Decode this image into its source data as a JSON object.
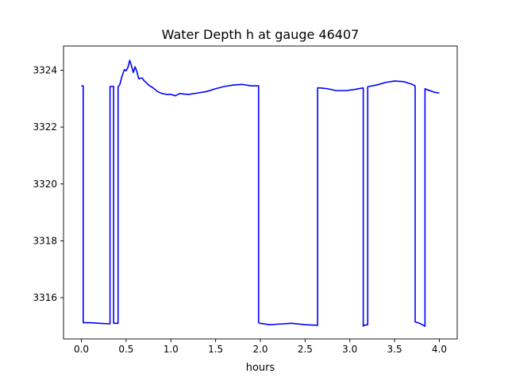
{
  "chart_data": {
    "type": "line",
    "title": "Water Depth h at gauge 46407",
    "xlabel": "hours",
    "ylabel": "",
    "xlim": [
      -0.2,
      4.2
    ],
    "ylim": [
      3314.55,
      3324.85
    ],
    "xticks": [
      0.0,
      0.5,
      1.0,
      1.5,
      2.0,
      2.5,
      3.0,
      3.5,
      4.0
    ],
    "xtick_labels": [
      "0.0",
      "0.5",
      "1.0",
      "1.5",
      "2.0",
      "2.5",
      "3.0",
      "3.5",
      "4.0"
    ],
    "yticks": [
      3316,
      3318,
      3320,
      3322,
      3324
    ],
    "ytick_labels": [
      "3316",
      "3318",
      "3320",
      "3322",
      "3324"
    ],
    "grid": false,
    "line_color": "#0000ff",
    "series": [
      {
        "x": [
          0.0,
          0.02,
          0.02,
          0.1,
          0.2,
          0.32,
          0.32,
          0.36,
          0.36,
          0.41,
          0.41,
          0.42,
          0.43,
          0.45,
          0.48,
          0.5,
          0.52,
          0.54,
          0.56,
          0.58,
          0.6,
          0.62,
          0.64,
          0.66,
          0.68,
          0.7,
          0.72,
          0.75,
          0.8,
          0.85,
          0.9,
          0.95,
          1.0,
          1.05,
          1.1,
          1.15,
          1.2,
          1.3,
          1.4,
          1.5,
          1.6,
          1.7,
          1.8,
          1.9,
          1.98,
          1.98,
          2.0,
          2.1,
          2.2,
          2.35,
          2.5,
          2.64,
          2.64,
          2.66,
          2.75,
          2.85,
          2.95,
          3.05,
          3.15,
          3.15,
          3.16,
          3.2,
          3.2,
          3.3,
          3.4,
          3.5,
          3.6,
          3.7,
          3.73,
          3.73,
          3.78,
          3.84,
          3.84,
          3.86,
          3.95,
          4.0
        ],
        "y": [
          3323.45,
          3323.45,
          3315.12,
          3315.12,
          3315.1,
          3315.08,
          3323.43,
          3323.43,
          3315.1,
          3315.1,
          3323.42,
          3323.45,
          3323.5,
          3323.75,
          3324.02,
          3323.98,
          3324.1,
          3324.35,
          3324.15,
          3323.92,
          3324.12,
          3323.95,
          3323.7,
          3323.72,
          3323.72,
          3323.63,
          3323.58,
          3323.48,
          3323.38,
          3323.25,
          3323.18,
          3323.15,
          3323.15,
          3323.1,
          3323.18,
          3323.16,
          3323.15,
          3323.2,
          3323.25,
          3323.35,
          3323.43,
          3323.48,
          3323.5,
          3323.45,
          3323.45,
          3315.12,
          3315.1,
          3315.05,
          3315.07,
          3315.1,
          3315.05,
          3315.03,
          3323.38,
          3323.38,
          3323.35,
          3323.28,
          3323.28,
          3323.32,
          3323.38,
          3315.0,
          3315.03,
          3315.05,
          3323.42,
          3323.48,
          3323.57,
          3323.62,
          3323.6,
          3323.5,
          3323.45,
          3315.15,
          3315.1,
          3315.0,
          3323.35,
          3323.32,
          3323.22,
          3323.2
        ]
      }
    ]
  }
}
